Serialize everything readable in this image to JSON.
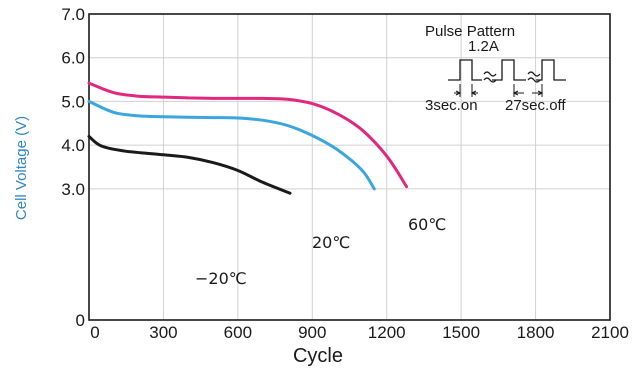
{
  "chart_data": {
    "type": "line",
    "title": "",
    "xlabel": "Cycle",
    "ylabel": "Cell Voltage (V)",
    "xlim": [
      0,
      2100
    ],
    "ylim": [
      0,
      7.0
    ],
    "x_ticks": [
      {
        "value": 0,
        "label": "0"
      },
      {
        "value": 300,
        "label": "300"
      },
      {
        "value": 600,
        "label": "600"
      },
      {
        "value": 900,
        "label": "900"
      },
      {
        "value": 1200,
        "label": "1200"
      },
      {
        "value": 1500,
        "label": "1500"
      },
      {
        "value": 1800,
        "label": "1800"
      },
      {
        "value": 2100,
        "label": "2100"
      }
    ],
    "y_ticks": [
      {
        "value": 0,
        "label": "0"
      },
      {
        "value": 3.0,
        "label": "3.0"
      },
      {
        "value": 4.0,
        "label": "4.0"
      },
      {
        "value": 5.0,
        "label": "5.0"
      },
      {
        "value": 6.0,
        "label": "6.0"
      },
      {
        "value": 7.0,
        "label": "7.0"
      }
    ],
    "grid": true,
    "series": [
      {
        "name": "60℃",
        "color": "#e0287f",
        "points": [
          [
            0,
            5.42
          ],
          [
            100,
            5.2
          ],
          [
            200,
            5.12
          ],
          [
            300,
            5.1
          ],
          [
            400,
            5.08
          ],
          [
            500,
            5.07
          ],
          [
            600,
            5.07
          ],
          [
            700,
            5.07
          ],
          [
            800,
            5.05
          ],
          [
            900,
            4.95
          ],
          [
            1000,
            4.72
          ],
          [
            1100,
            4.35
          ],
          [
            1200,
            3.75
          ],
          [
            1280,
            3.05
          ]
        ]
      },
      {
        "name": "20℃",
        "color": "#3aa6dd",
        "points": [
          [
            0,
            5.0
          ],
          [
            100,
            4.75
          ],
          [
            200,
            4.67
          ],
          [
            300,
            4.65
          ],
          [
            400,
            4.64
          ],
          [
            500,
            4.63
          ],
          [
            600,
            4.62
          ],
          [
            700,
            4.57
          ],
          [
            800,
            4.45
          ],
          [
            900,
            4.22
          ],
          [
            1000,
            3.9
          ],
          [
            1100,
            3.43
          ],
          [
            1150,
            3.0
          ]
        ]
      },
      {
        "name": "-20℃",
        "color": "#1a1a1a",
        "points": [
          [
            0,
            4.2
          ],
          [
            50,
            3.98
          ],
          [
            150,
            3.86
          ],
          [
            300,
            3.78
          ],
          [
            400,
            3.72
          ],
          [
            500,
            3.6
          ],
          [
            600,
            3.42
          ],
          [
            700,
            3.15
          ],
          [
            810,
            2.9
          ]
        ]
      }
    ],
    "series_labels": [
      "60℃",
      "20℃",
      "−20℃"
    ],
    "inset": {
      "title": "Pulse Pattern",
      "current": "1.2A",
      "on_label": "3sec.on",
      "off_label": "27sec.off"
    }
  }
}
